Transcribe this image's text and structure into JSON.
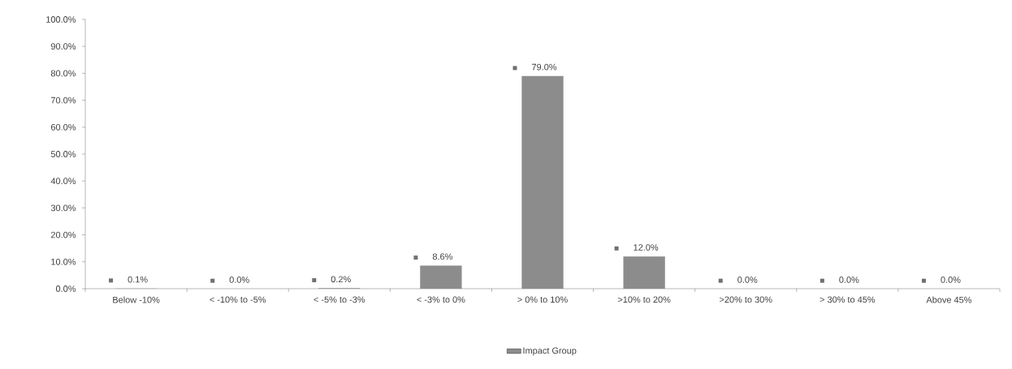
{
  "chart_data": {
    "type": "bar",
    "categories": [
      "Below -10%",
      "< -10% to -5%",
      "< -5% to -3%",
      "< -3% to 0%",
      "> 0% to 10%",
      ">10% to 20%",
      ">20% to 30%",
      "> 30% to 45%",
      "Above 45%"
    ],
    "series": [
      {
        "name": "Impact Group",
        "color": "#8c8c8c",
        "values": [
          0.1,
          0.0,
          0.2,
          8.6,
          79.0,
          12.0,
          0.0,
          0.0,
          0.0
        ],
        "value_labels": [
          "0.1%",
          "0.0%",
          "0.2%",
          "8.6%",
          "79.0%",
          "12.0%",
          "0.0%",
          "0.0%",
          "0.0%"
        ]
      }
    ],
    "ylim": [
      0,
      100
    ],
    "yticks": [
      {
        "value": 0,
        "label": "0.0%"
      },
      {
        "value": 10,
        "label": "10.0%"
      },
      {
        "value": 20,
        "label": "20.0%"
      },
      {
        "value": 30,
        "label": "30.0%"
      },
      {
        "value": 40,
        "label": "40.0%"
      },
      {
        "value": 50,
        "label": "50.0%"
      },
      {
        "value": 60,
        "label": "60.0%"
      },
      {
        "value": 70,
        "label": "70.0%"
      },
      {
        "value": 80,
        "label": "80.0%"
      },
      {
        "value": 90,
        "label": "90.0%"
      },
      {
        "value": 100,
        "label": "100.0%"
      }
    ],
    "legend": "bottom"
  }
}
